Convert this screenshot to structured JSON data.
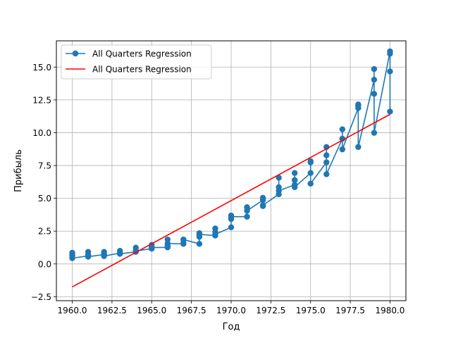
{
  "chart_data": {
    "type": "line",
    "title": "",
    "xlabel": "Год",
    "ylabel": "Прибыль",
    "xlim": [
      1959.0,
      1981.0
    ],
    "ylim": [
      -2.8,
      17.0
    ],
    "x_ticks": [
      1960.0,
      1962.5,
      1965.0,
      1967.5,
      1970.0,
      1972.5,
      1975.0,
      1977.5,
      1980.0
    ],
    "x_tick_labels": [
      "1960.0",
      "1962.5",
      "1965.0",
      "1967.5",
      "1970.0",
      "1972.5",
      "1975.0",
      "1977.5",
      "1980.0"
    ],
    "y_ticks": [
      -2.5,
      0.0,
      2.5,
      5.0,
      7.5,
      10.0,
      12.5,
      15.0
    ],
    "y_tick_labels": [
      "−2.5",
      "0.0",
      "2.5",
      "5.0",
      "7.5",
      "10.0",
      "12.5",
      "15.0"
    ],
    "grid": true,
    "legend_position": "top-left",
    "series": [
      {
        "name": "All Quarters Regression",
        "kind": "line-markers",
        "color": "#1f77b4",
        "points": [
          [
            1960,
            0.71
          ],
          [
            1960,
            0.63
          ],
          [
            1960,
            0.85
          ],
          [
            1960,
            0.44
          ],
          [
            1961,
            0.61
          ],
          [
            1961,
            0.69
          ],
          [
            1961,
            0.92
          ],
          [
            1961,
            0.55
          ],
          [
            1962,
            0.72
          ],
          [
            1962,
            0.77
          ],
          [
            1962,
            0.92
          ],
          [
            1962,
            0.6
          ],
          [
            1963,
            0.83
          ],
          [
            1963,
            0.8
          ],
          [
            1963,
            1.0
          ],
          [
            1963,
            0.77
          ],
          [
            1964,
            0.92
          ],
          [
            1964,
            1.0
          ],
          [
            1964,
            1.24
          ],
          [
            1964,
            1.0
          ],
          [
            1965,
            1.16
          ],
          [
            1965,
            1.3
          ],
          [
            1965,
            1.45
          ],
          [
            1965,
            1.25
          ],
          [
            1966,
            1.26
          ],
          [
            1966,
            1.38
          ],
          [
            1966,
            1.86
          ],
          [
            1966,
            1.56
          ],
          [
            1967,
            1.53
          ],
          [
            1967,
            1.59
          ],
          [
            1967,
            1.83
          ],
          [
            1967,
            1.86
          ],
          [
            1968,
            1.53
          ],
          [
            1968,
            2.07
          ],
          [
            1968,
            2.34
          ],
          [
            1968,
            2.25
          ],
          [
            1969,
            2.16
          ],
          [
            1969,
            2.43
          ],
          [
            1969,
            2.7
          ],
          [
            1969,
            2.25
          ],
          [
            1970,
            2.79
          ],
          [
            1970,
            3.42
          ],
          [
            1970,
            3.69
          ],
          [
            1970,
            3.6
          ],
          [
            1971,
            3.6
          ],
          [
            1971,
            4.32
          ],
          [
            1971,
            4.32
          ],
          [
            1971,
            4.05
          ],
          [
            1972,
            4.86
          ],
          [
            1972,
            5.04
          ],
          [
            1972,
            4.41
          ],
          [
            1972,
            4.47
          ],
          [
            1973,
            5.31
          ],
          [
            1973,
            6.57
          ],
          [
            1973,
            5.85
          ],
          [
            1973,
            5.58
          ],
          [
            1974,
            6.03
          ],
          [
            1974,
            6.39
          ],
          [
            1974,
            6.93
          ],
          [
            1974,
            5.85
          ],
          [
            1975,
            6.93
          ],
          [
            1975,
            7.74
          ],
          [
            1975,
            7.83
          ],
          [
            1975,
            6.12
          ],
          [
            1976,
            7.74
          ],
          [
            1976,
            8.91
          ],
          [
            1976,
            8.28
          ],
          [
            1976,
            6.84
          ],
          [
            1977,
            9.54
          ],
          [
            1977,
            10.26
          ],
          [
            1977,
            9.54
          ],
          [
            1977,
            8.73
          ],
          [
            1978,
            11.88
          ],
          [
            1978,
            12.06
          ],
          [
            1978,
            12.15
          ],
          [
            1978,
            8.91
          ],
          [
            1979,
            14.04
          ],
          [
            1979,
            12.96
          ],
          [
            1979,
            14.85
          ],
          [
            1979,
            9.99
          ],
          [
            1980,
            16.2
          ],
          [
            1980,
            14.67
          ],
          [
            1980,
            16.02
          ],
          [
            1980,
            11.61
          ]
        ]
      },
      {
        "name": "All Quarters Regression",
        "kind": "line",
        "color": "#ff0000",
        "points": [
          [
            1960,
            -1.75
          ],
          [
            1980,
            11.4
          ]
        ]
      }
    ]
  }
}
